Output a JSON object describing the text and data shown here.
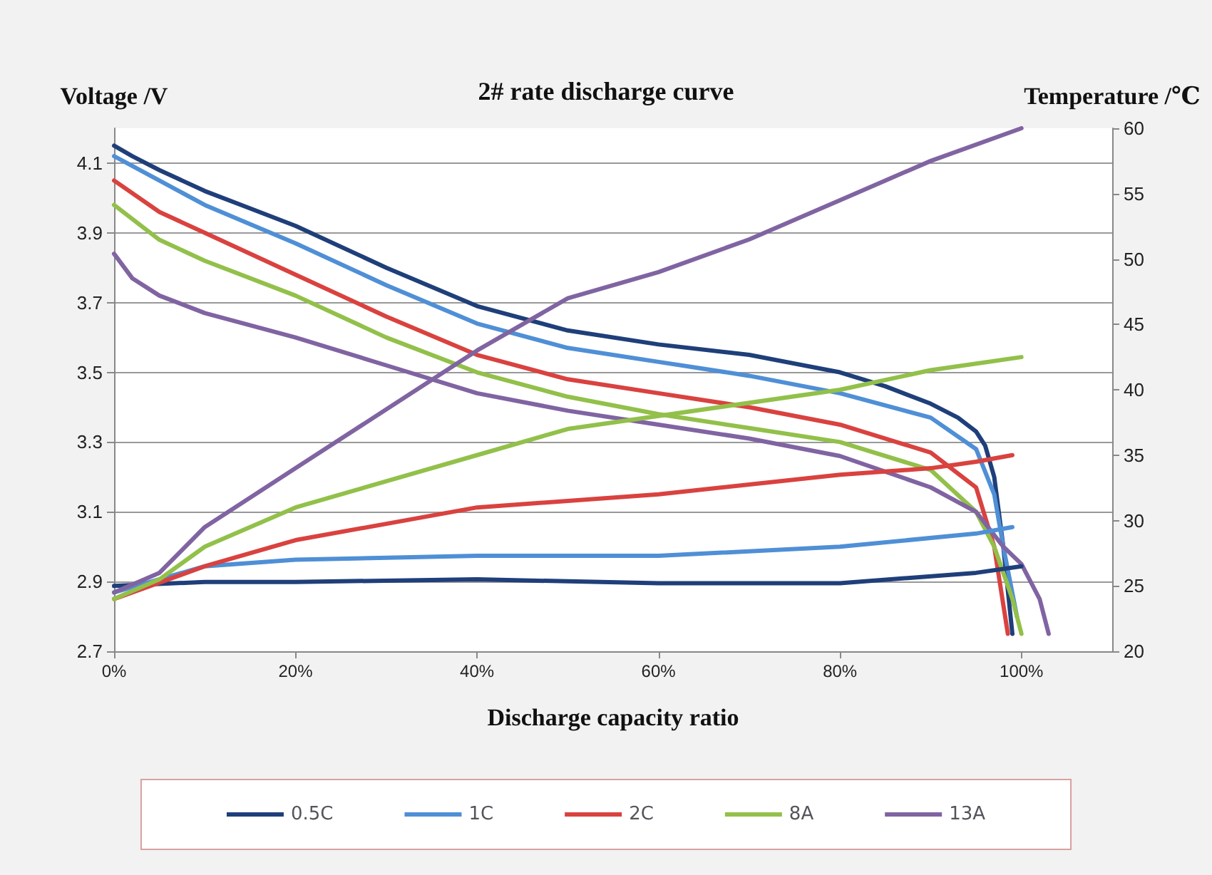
{
  "chart_data": {
    "type": "line",
    "title": "2# rate discharge curve",
    "xlabel": "Discharge capacity ratio",
    "ylabel": "Voltage /V",
    "y2label": "Temperature /℃",
    "xlim": [
      0,
      110
    ],
    "xticks": [
      {
        "value": 0,
        "label": "0%"
      },
      {
        "value": 20,
        "label": "20%"
      },
      {
        "value": 40,
        "label": "40%"
      },
      {
        "value": 60,
        "label": "60%"
      },
      {
        "value": 80,
        "label": "80%"
      },
      {
        "value": 100,
        "label": "100%"
      }
    ],
    "ylim": [
      2.7,
      4.2
    ],
    "yticks": [
      2.7,
      2.9,
      3.1,
      3.3,
      3.5,
      3.7,
      3.9,
      4.1
    ],
    "y2lim": [
      20,
      60
    ],
    "y2ticks": [
      20,
      25,
      30,
      35,
      40,
      45,
      50,
      55,
      60
    ],
    "grid": "y",
    "legend": "bottom",
    "marker": "none",
    "line_style": "solid",
    "series": [
      {
        "name": "0.5C",
        "color": "#1f3f7a",
        "x": [
          0,
          2,
          5,
          10,
          15,
          20,
          30,
          40,
          50,
          60,
          70,
          80,
          85,
          90,
          93,
          95,
          96,
          97,
          98,
          99
        ],
        "values": [
          4.15,
          4.12,
          4.08,
          4.02,
          3.97,
          3.92,
          3.8,
          3.69,
          3.62,
          3.58,
          3.55,
          3.5,
          3.46,
          3.41,
          3.37,
          3.33,
          3.29,
          3.2,
          3.0,
          2.75
        ]
      },
      {
        "name": "1C",
        "color": "#4f8fd6",
        "x": [
          0,
          5,
          10,
          20,
          30,
          40,
          50,
          60,
          70,
          80,
          90,
          95,
          97,
          98,
          99.5
        ],
        "values": [
          4.12,
          4.05,
          3.98,
          3.87,
          3.75,
          3.64,
          3.57,
          3.53,
          3.49,
          3.44,
          3.37,
          3.28,
          3.15,
          3.0,
          2.8
        ]
      },
      {
        "name": "2C",
        "color": "#d9423f",
        "x": [
          0,
          5,
          10,
          20,
          30,
          40,
          50,
          60,
          70,
          80,
          90,
          95,
          97,
          98.5
        ],
        "values": [
          4.05,
          3.96,
          3.9,
          3.78,
          3.66,
          3.55,
          3.48,
          3.44,
          3.4,
          3.35,
          3.27,
          3.17,
          3.0,
          2.75
        ]
      },
      {
        "name": "8A",
        "color": "#92c04a",
        "x": [
          0,
          5,
          10,
          20,
          30,
          40,
          50,
          60,
          70,
          80,
          90,
          95,
          97,
          99,
          100
        ],
        "values": [
          3.98,
          3.88,
          3.82,
          3.72,
          3.6,
          3.5,
          3.43,
          3.38,
          3.34,
          3.3,
          3.22,
          3.1,
          3.0,
          2.85,
          2.75
        ]
      },
      {
        "name": "13A",
        "color": "#8064a2",
        "x": [
          0,
          2,
          5,
          10,
          20,
          30,
          40,
          50,
          60,
          70,
          80,
          90,
          95,
          98,
          100,
          102,
          103
        ],
        "values": [
          3.84,
          3.77,
          3.72,
          3.67,
          3.6,
          3.52,
          3.44,
          3.39,
          3.35,
          3.31,
          3.26,
          3.17,
          3.1,
          3.0,
          2.95,
          2.85,
          2.75
        ]
      },
      {
        "color": "#1f3f7a",
        "axis": "y2",
        "x": [
          0,
          10,
          20,
          40,
          60,
          80,
          95,
          100
        ],
        "values": [
          25,
          25.3,
          25.3,
          25.5,
          25.2,
          25.2,
          26,
          26.5
        ]
      },
      {
        "color": "#4f8fd6",
        "axis": "y2",
        "x": [
          0,
          10,
          20,
          40,
          60,
          80,
          95,
          99
        ],
        "values": [
          24.5,
          26.5,
          27,
          27.3,
          27.3,
          28,
          29,
          29.5
        ]
      },
      {
        "color": "#d9423f",
        "axis": "y2",
        "x": [
          0,
          10,
          20,
          40,
          60,
          80,
          90,
          95,
          99
        ],
        "values": [
          24,
          26.5,
          28.5,
          31,
          32,
          33.5,
          34,
          34.5,
          35
        ]
      },
      {
        "color": "#92c04a",
        "axis": "y2",
        "x": [
          0,
          5,
          10,
          20,
          30,
          40,
          50,
          60,
          80,
          90,
          100
        ],
        "values": [
          24,
          25.5,
          28,
          31,
          33,
          35,
          37,
          38,
          40,
          41.5,
          42.5
        ]
      },
      {
        "color": "#8064a2",
        "axis": "y2",
        "x": [
          0,
          5,
          10,
          20,
          30,
          40,
          50,
          60,
          70,
          80,
          90,
          100
        ],
        "values": [
          24.5,
          26,
          29.5,
          34,
          38.5,
          43,
          47,
          49,
          51.5,
          54.5,
          57.5,
          60
        ]
      }
    ]
  }
}
